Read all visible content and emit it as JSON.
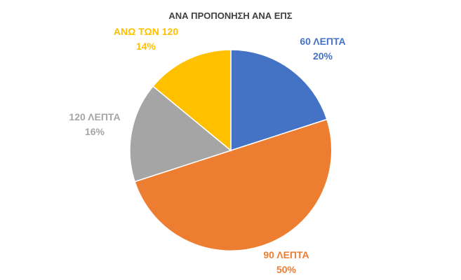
{
  "chart_data": {
    "type": "pie",
    "title": "ΑΝΑ ΠΡΟΠΟΝΗΣΗ ΑΝΑ ΕΠΣ",
    "categories": [
      "60 ΛΕΠΤΑ",
      "90 ΛΕΠΤΑ",
      "120 ΛΕΠΤΑ",
      "ΑΝΩ ΤΩΝ 120"
    ],
    "values": [
      20,
      50,
      16,
      14
    ],
    "value_labels": [
      "20%",
      "50%",
      "16%",
      "14%"
    ],
    "unit": "%",
    "colors": [
      "#4472C4",
      "#ED7D31",
      "#A5A5A5",
      "#FFC000"
    ],
    "label_placement": "outside",
    "legend": "none",
    "start": "12 o'clock",
    "direction": "clockwise"
  }
}
